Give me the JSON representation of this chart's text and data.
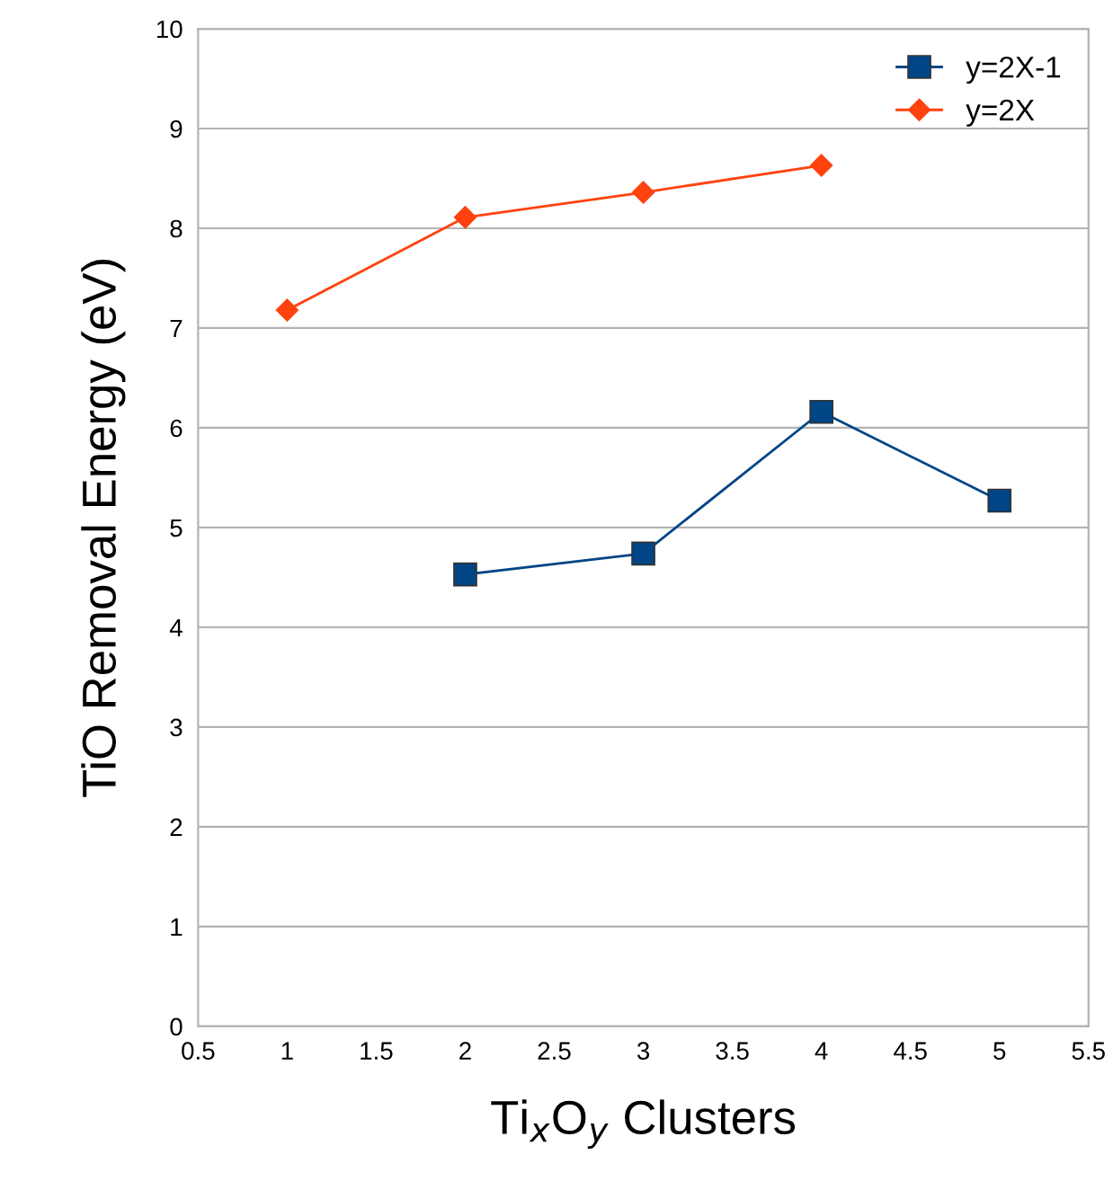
{
  "chart_data": {
    "type": "line",
    "xlabel": "Ti$_{x}$O$_{y}$ Clusters",
    "ylabel": "TiO Removal Energy (eV)",
    "series": [
      {
        "name": "y=2X-1",
        "color": "#004586",
        "marker": "square",
        "x": [
          2,
          3,
          4,
          5
        ],
        "values": [
          4.53,
          4.74,
          6.16,
          5.27
        ]
      },
      {
        "name": "y=2X",
        "color": "#ff420e",
        "marker": "diamond",
        "x": [
          1,
          2,
          3,
          4
        ],
        "values": [
          7.18,
          8.11,
          8.36,
          8.63
        ]
      }
    ],
    "xlim": [
      0.5,
      5.5
    ],
    "xticks": [
      0.5,
      1,
      1.5,
      2,
      2.5,
      3,
      3.5,
      4,
      4.5,
      5,
      5.5
    ],
    "ylim": [
      0,
      10
    ],
    "yticks": [
      0,
      1,
      2,
      3,
      4,
      5,
      6,
      7,
      8,
      9,
      10
    ],
    "grid": "y",
    "legend": "top right"
  }
}
